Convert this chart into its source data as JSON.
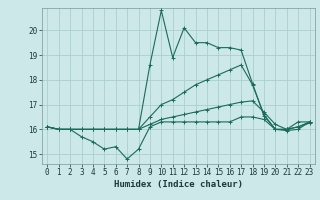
{
  "xlabel": "Humidex (Indice chaleur)",
  "bg_color": "#cce8e8",
  "grid_color": "#aacfcf",
  "line_color": "#1a6b5a",
  "xlim": [
    -0.5,
    23.5
  ],
  "ylim": [
    14.6,
    20.9
  ],
  "xticks": [
    0,
    1,
    2,
    3,
    4,
    5,
    6,
    7,
    8,
    9,
    10,
    11,
    12,
    13,
    14,
    15,
    16,
    17,
    18,
    19,
    20,
    21,
    22,
    23
  ],
  "yticks": [
    15,
    16,
    17,
    18,
    19,
    20
  ],
  "series": {
    "max": [
      16.1,
      16.0,
      16.0,
      16.0,
      16.0,
      16.0,
      16.0,
      16.0,
      16.0,
      18.6,
      20.8,
      18.9,
      20.1,
      19.5,
      19.5,
      19.3,
      19.3,
      19.2,
      17.85,
      16.55,
      16.0,
      16.0,
      16.3,
      16.3
    ],
    "avg": [
      16.1,
      16.0,
      16.0,
      16.0,
      16.0,
      16.0,
      16.0,
      16.0,
      16.0,
      16.5,
      17.0,
      17.2,
      17.5,
      17.8,
      18.0,
      18.2,
      18.4,
      18.6,
      17.8,
      16.6,
      16.0,
      16.0,
      16.1,
      16.3
    ],
    "min": [
      16.1,
      16.0,
      16.0,
      15.7,
      15.5,
      15.2,
      15.3,
      14.8,
      15.2,
      16.1,
      16.3,
      16.3,
      16.3,
      16.3,
      16.3,
      16.3,
      16.3,
      16.5,
      16.5,
      16.4,
      16.0,
      15.95,
      16.0,
      16.3
    ],
    "cur": [
      16.1,
      16.0,
      16.0,
      16.0,
      16.0,
      16.0,
      16.0,
      16.0,
      16.0,
      16.2,
      16.4,
      16.5,
      16.6,
      16.7,
      16.8,
      16.9,
      17.0,
      17.1,
      17.15,
      16.7,
      16.2,
      16.0,
      16.1,
      16.25
    ]
  }
}
